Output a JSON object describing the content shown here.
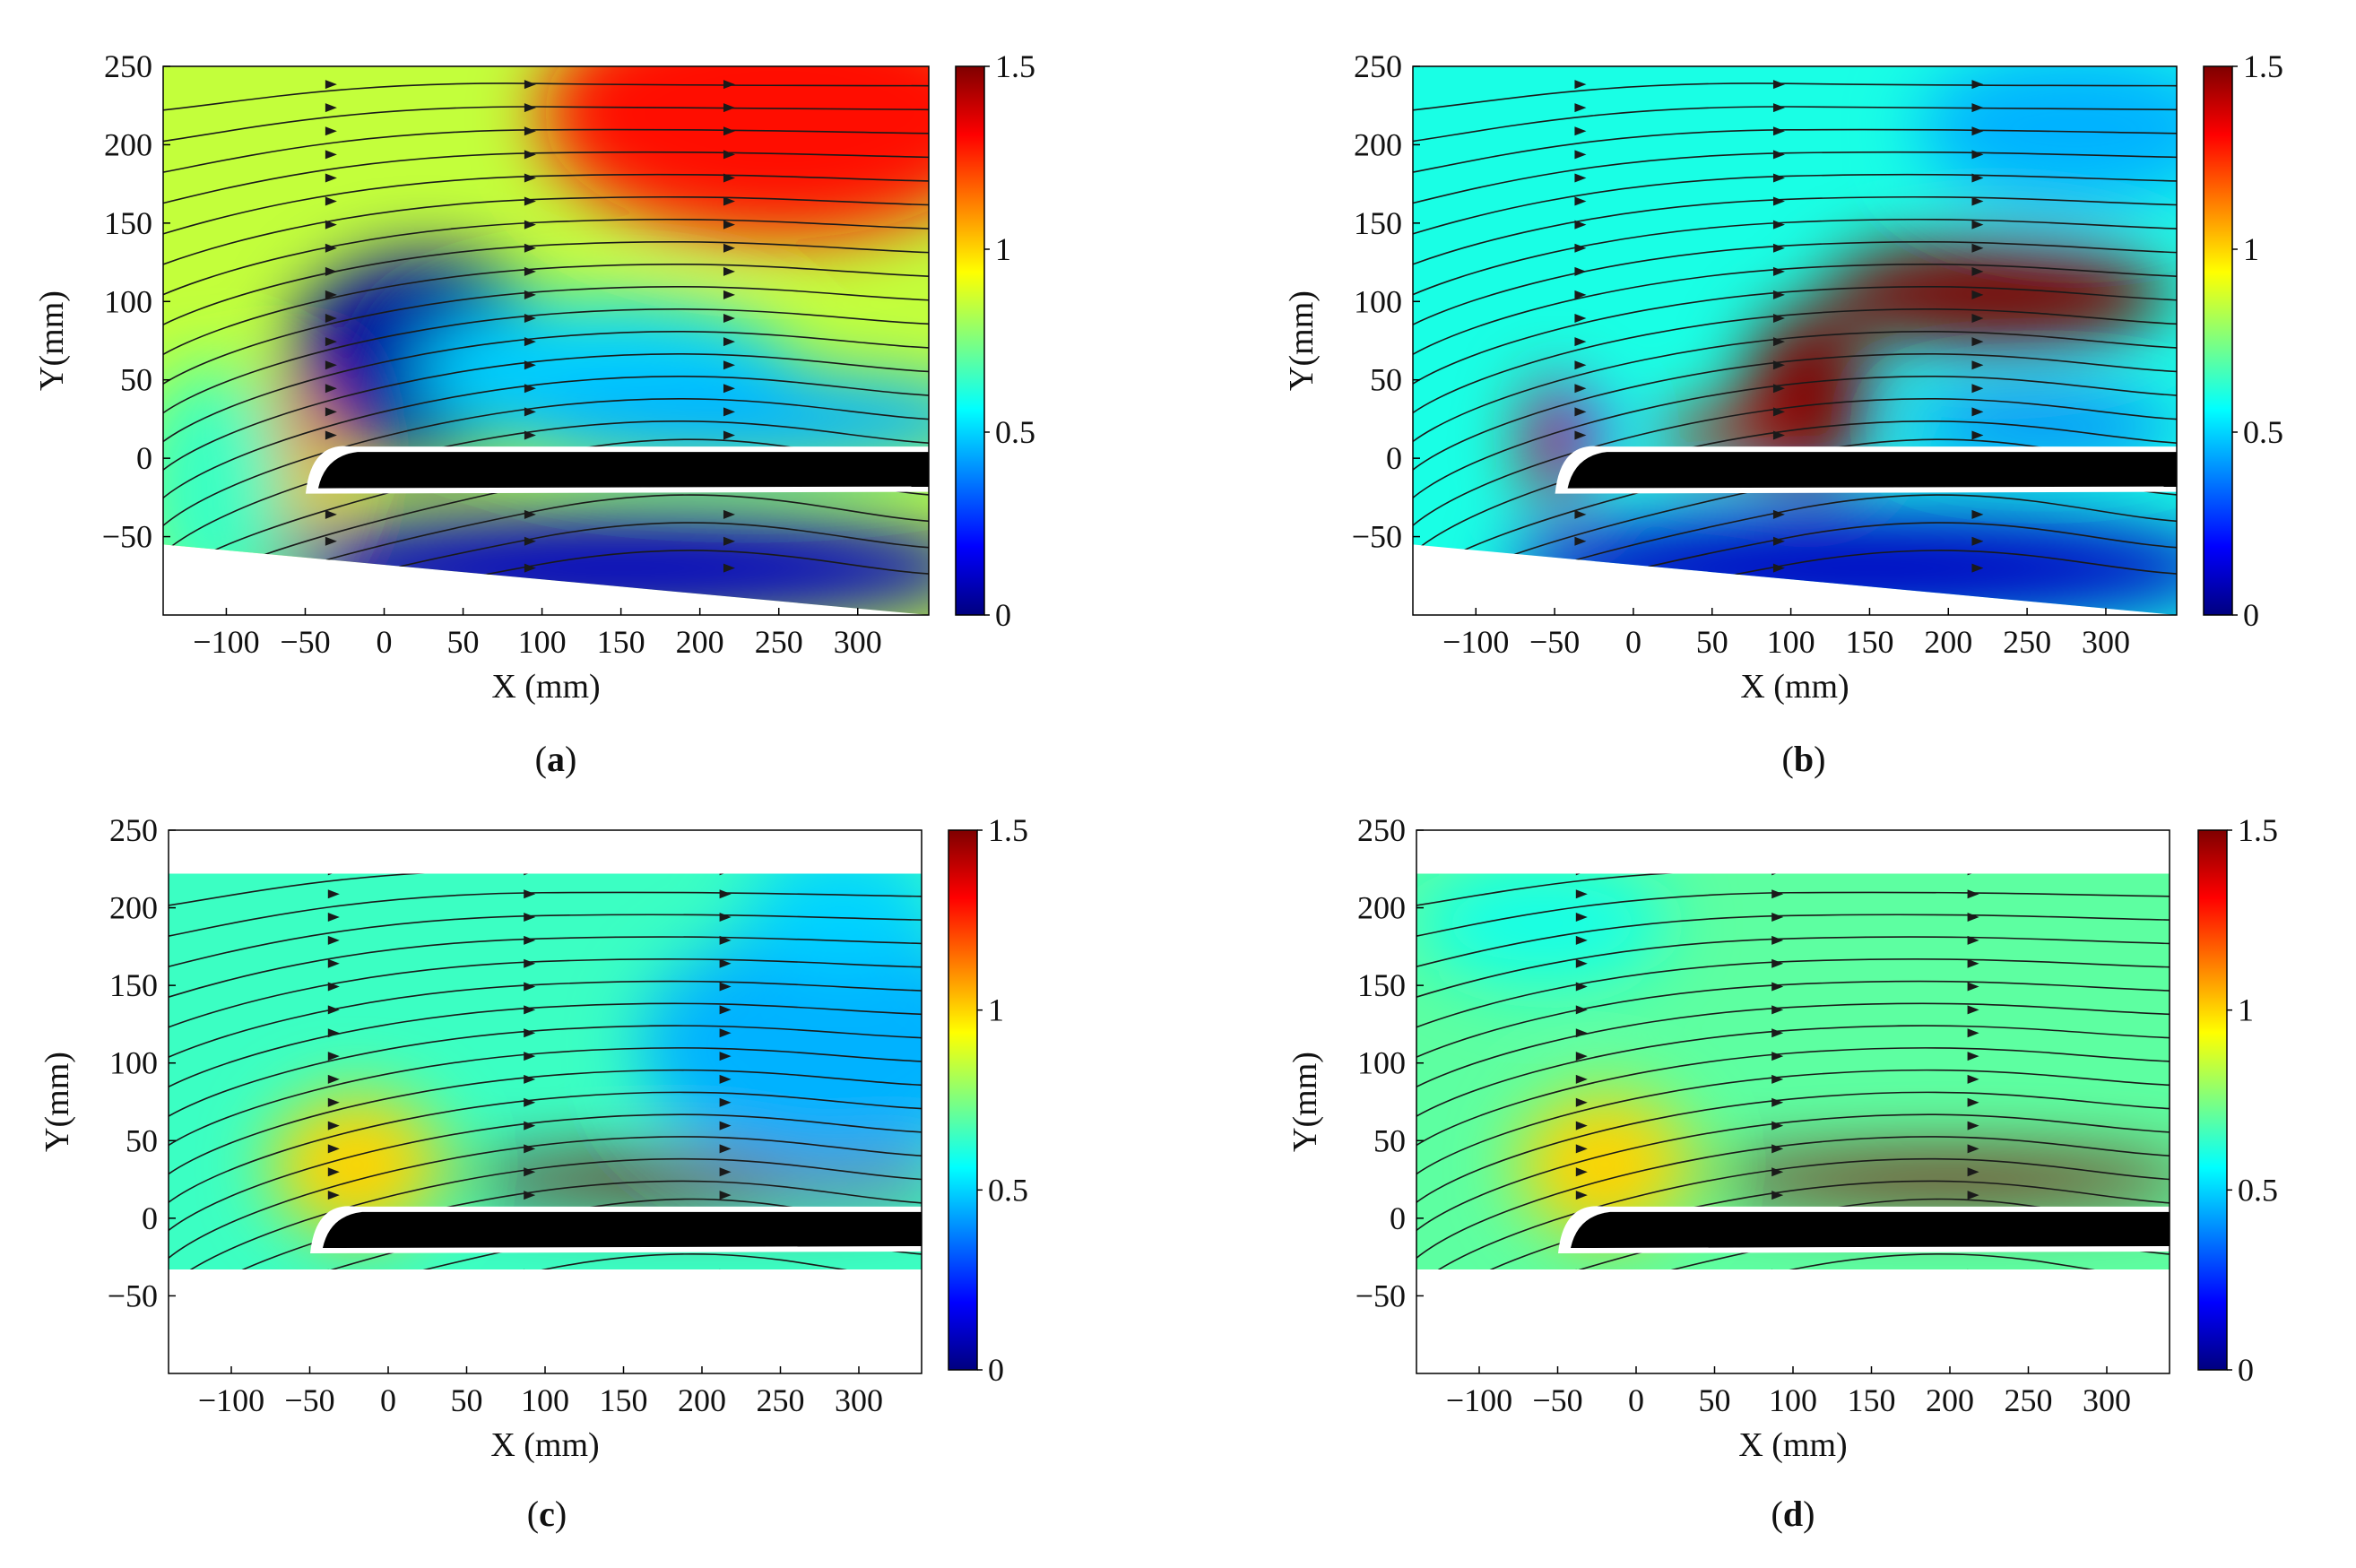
{
  "figure": {
    "colormap": {
      "stops": [
        "#00007f",
        "#0000ff",
        "#007fff",
        "#00ffff",
        "#7fff7f",
        "#ffff00",
        "#ff7f00",
        "#ff0000",
        "#7f0000"
      ],
      "blade_color": "#000000",
      "streamline_color": "#1a1a1a"
    },
    "chart_data": [
      {
        "type": "heatmap",
        "panel_label_prefix": "(",
        "panel_letter": "a",
        "panel_label_suffix": ")",
        "xlabel": "X (mm)",
        "ylabel": "Y(mm)",
        "xlim": [
          -140,
          345
        ],
        "ylim": [
          -100,
          250
        ],
        "xticks": [
          -100,
          -50,
          0,
          50,
          100,
          150,
          200,
          250,
          300
        ],
        "xtick_labels": [
          "−100",
          "−50",
          "0",
          "50",
          "100",
          "150",
          "200",
          "250",
          "300"
        ],
        "yticks": [
          -50,
          0,
          50,
          100,
          150,
          200,
          250
        ],
        "ytick_labels": [
          "−50",
          "0",
          "50",
          "100",
          "150",
          "200",
          "250"
        ],
        "colorbar": {
          "min": 0,
          "max": 1.5,
          "ticks": [
            0,
            0.5,
            1,
            1.5
          ],
          "tick_labels": [
            "0",
            "0.5",
            "1",
            "1.5"
          ]
        },
        "field_top_y": 250,
        "field_bottom": "slanted",
        "field_bottom_y_at_xmin": -55,
        "field_bottom_y_at_xmax": -100,
        "background_value": 0.85,
        "regions": [
          {
            "x": 25,
            "y": 65,
            "value": -0.8,
            "rx": 85,
            "ry": 65
          },
          {
            "x": 140,
            "y": 55,
            "value": -0.35,
            "rx": 120,
            "ry": 45
          },
          {
            "x": 230,
            "y": 25,
            "value": -0.4,
            "rx": 160,
            "ry": 30
          },
          {
            "x": 250,
            "y": 220,
            "value": 0.45,
            "rx": 150,
            "ry": 80
          },
          {
            "x": -60,
            "y": 0,
            "value": 0.3,
            "rx": 25,
            "ry": 50
          },
          {
            "x": 150,
            "y": -70,
            "value": -0.75,
            "rx": 230,
            "ry": 35
          },
          {
            "x": -110,
            "y": -20,
            "value": -0.2,
            "rx": 50,
            "ry": 80
          }
        ]
      },
      {
        "type": "heatmap",
        "panel_label_prefix": "(",
        "panel_letter": "b",
        "panel_label_suffix": ")",
        "xlabel": "X (mm)",
        "ylabel": "Y(mm)",
        "xlim": [
          -140,
          345
        ],
        "ylim": [
          -100,
          250
        ],
        "xticks": [
          -100,
          -50,
          0,
          50,
          100,
          150,
          200,
          250,
          300
        ],
        "xtick_labels": [
          "−100",
          "−50",
          "0",
          "50",
          "100",
          "150",
          "200",
          "250",
          "300"
        ],
        "yticks": [
          -50,
          0,
          50,
          100,
          150,
          200,
          250
        ],
        "ytick_labels": [
          "−50",
          "0",
          "50",
          "100",
          "150",
          "200",
          "250"
        ],
        "colorbar": {
          "min": 0,
          "max": 1.5,
          "ticks": [
            0,
            0.5,
            1,
            1.5
          ],
          "tick_labels": [
            "0",
            "0.5",
            "1",
            "1.5"
          ]
        },
        "field_top_y": 250,
        "field_bottom": "slanted",
        "field_bottom_y_at_xmin": -55,
        "field_bottom_y_at_xmax": -100,
        "background_value": 0.6,
        "regions": [
          {
            "x": 230,
            "y": 105,
            "value": 0.95,
            "rx": 110,
            "ry": 35
          },
          {
            "x": 110,
            "y": 40,
            "value": 0.9,
            "rx": 40,
            "ry": 55
          },
          {
            "x": 60,
            "y": 15,
            "value": 0.8,
            "rx": 45,
            "ry": 15
          },
          {
            "x": -50,
            "y": 10,
            "value": 0.8,
            "rx": 18,
            "ry": 40
          },
          {
            "x": -30,
            "y": 18,
            "value": -0.4,
            "rx": 12,
            "ry": 12
          },
          {
            "x": 260,
            "y": 20,
            "value": -0.25,
            "rx": 90,
            "ry": 18
          },
          {
            "x": 280,
            "y": 210,
            "value": -0.15,
            "rx": 100,
            "ry": 50
          },
          {
            "x": 150,
            "y": -70,
            "value": -0.5,
            "rx": 230,
            "ry": 35
          }
        ]
      },
      {
        "type": "heatmap",
        "panel_label_prefix": "(",
        "panel_letter": "c",
        "panel_label_suffix": ")",
        "xlabel": "X (mm)",
        "ylabel": "Y(mm)",
        "xlim": [
          -140,
          340
        ],
        "ylim": [
          -100,
          250
        ],
        "xticks": [
          -100,
          -50,
          0,
          50,
          100,
          150,
          200,
          250,
          300
        ],
        "xtick_labels": [
          "−100",
          "−50",
          "0",
          "50",
          "100",
          "150",
          "200",
          "250",
          "300"
        ],
        "yticks": [
          -50,
          0,
          50,
          100,
          150,
          200,
          250
        ],
        "ytick_labels": [
          "−50",
          "0",
          "50",
          "100",
          "150",
          "200",
          "250"
        ],
        "colorbar": {
          "min": 0,
          "max": 1.5,
          "ticks": [
            0,
            0.5,
            1,
            1.5
          ],
          "tick_labels": [
            "0",
            "0.5",
            "1",
            "1.5"
          ]
        },
        "field_top_y": 222,
        "field_bottom": "flat",
        "field_bottom_y_at_xmin": -33,
        "field_bottom_y_at_xmax": -33,
        "background_value": 0.65,
        "regions": [
          {
            "x": -20,
            "y": 15,
            "value": 0.85,
            "rx": 32,
            "ry": 30
          },
          {
            "x": -20,
            "y": 35,
            "value": 0.35,
            "rx": 55,
            "ry": 45
          },
          {
            "x": 200,
            "y": 25,
            "value": 0.85,
            "rx": 160,
            "ry": 15
          },
          {
            "x": 280,
            "y": 110,
            "value": -0.2,
            "rx": 120,
            "ry": 80
          },
          {
            "x": 290,
            "y": 200,
            "value": -0.15,
            "rx": 60,
            "ry": 40
          }
        ]
      },
      {
        "type": "heatmap",
        "panel_label_prefix": "(",
        "panel_letter": "d",
        "panel_label_suffix": ")",
        "xlabel": "X (mm)",
        "ylabel": "Y(mm)",
        "xlim": [
          -140,
          340
        ],
        "ylim": [
          -100,
          250
        ],
        "xticks": [
          -100,
          -50,
          0,
          50,
          100,
          150,
          200,
          250,
          300
        ],
        "xtick_labels": [
          "−100",
          "−50",
          "0",
          "50",
          "100",
          "150",
          "200",
          "250",
          "300"
        ],
        "yticks": [
          -50,
          0,
          50,
          100,
          150,
          200,
          250
        ],
        "ytick_labels": [
          "−50",
          "0",
          "50",
          "100",
          "150",
          "200",
          "250"
        ],
        "colorbar": {
          "min": 0,
          "max": 1.5,
          "ticks": [
            0,
            0.5,
            1,
            1.5
          ],
          "tick_labels": [
            "0",
            "0.5",
            "1",
            "1.5"
          ]
        },
        "field_top_y": 222,
        "field_bottom": "flat",
        "field_bottom_y_at_xmin": -33,
        "field_bottom_y_at_xmax": -33,
        "background_value": 0.7,
        "regions": [
          {
            "x": -20,
            "y": 15,
            "value": 0.8,
            "rx": 32,
            "ry": 30
          },
          {
            "x": -20,
            "y": 35,
            "value": 0.3,
            "rx": 55,
            "ry": 45
          },
          {
            "x": 200,
            "y": 25,
            "value": 0.8,
            "rx": 160,
            "ry": 15
          },
          {
            "x": -60,
            "y": 190,
            "value": -0.1,
            "rx": 80,
            "ry": 40
          }
        ]
      }
    ]
  }
}
